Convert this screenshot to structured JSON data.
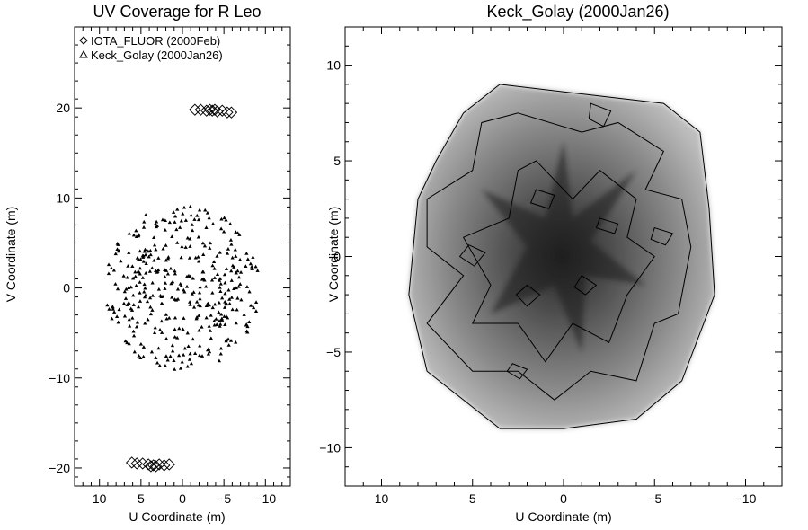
{
  "chart_data": [
    {
      "type": "scatter",
      "title": "UV Coverage for R Leo",
      "xlabel": "U Coordinate (m)",
      "ylabel": "V Coordinate (m)",
      "xlim": [
        13,
        -13
      ],
      "ylim": [
        -22,
        29
      ],
      "x_ticks": [
        10,
        5,
        0,
        -5,
        -10
      ],
      "y_ticks": [
        -20,
        -10,
        0,
        10,
        20
      ],
      "x_tick_labels": [
        "10",
        "5",
        "0",
        "−5",
        "−10"
      ],
      "y_tick_labels": [
        "−20",
        "−10",
        "0",
        "10",
        "20"
      ],
      "grid": false,
      "legend": {
        "placement": "top-left",
        "entries": [
          {
            "marker": "diamond",
            "label": "IOTA_FLUOR (2000Feb)"
          },
          {
            "marker": "triangle",
            "label": "Keck_Golay (2000Jan26)"
          }
        ]
      },
      "series": [
        {
          "name": "IOTA_FLUOR (2000Feb)",
          "marker": "diamond",
          "points": [
            [
              -1.5,
              19.8
            ],
            [
              -2.2,
              19.8
            ],
            [
              -2.9,
              19.7
            ],
            [
              -3.3,
              19.8
            ],
            [
              -3.6,
              19.7
            ],
            [
              -3.9,
              19.8
            ],
            [
              -4.2,
              19.6
            ],
            [
              -4.8,
              19.7
            ],
            [
              -5.4,
              19.5
            ],
            [
              -5.9,
              19.5
            ],
            [
              6.1,
              -19.4
            ],
            [
              5.5,
              -19.5
            ],
            [
              4.8,
              -19.5
            ],
            [
              4.1,
              -19.6
            ],
            [
              3.8,
              -19.8
            ],
            [
              3.5,
              -19.7
            ],
            [
              3.2,
              -19.8
            ],
            [
              2.8,
              -19.6
            ],
            [
              2.2,
              -19.7
            ],
            [
              1.6,
              -19.6
            ]
          ]
        },
        {
          "name": "Keck_Golay (2000Jan26)",
          "marker": "triangle",
          "description_of_extent": "hexagonal cloud of points, |U| up to ~9 m, |V| up to ~9.5 m, centrally symmetric"
        }
      ]
    },
    {
      "type": "heatmap",
      "title": "Keck_Golay (2000Jan26)",
      "xlabel": "U Coordinate (m)",
      "ylabel": "V Coordinate (m)",
      "xlim": [
        12,
        -12
      ],
      "ylim": [
        -12,
        12
      ],
      "x_ticks": [
        10,
        5,
        0,
        -5,
        -10
      ],
      "y_ticks": [
        -10,
        -5,
        0,
        5,
        10
      ],
      "x_tick_labels": [
        "10",
        "5",
        "0",
        "−5",
        "−10"
      ],
      "y_tick_labels": [
        "−10",
        "−5",
        "0",
        "5",
        "10"
      ],
      "grid": false,
      "colorscale": "greyscale, darker = higher",
      "outer_boundary": [
        [
          3.5,
          9.0
        ],
        [
          -5.5,
          8.0
        ],
        [
          -7.5,
          6.5
        ],
        [
          -8.0,
          2.5
        ],
        [
          -8.3,
          -2.0
        ],
        [
          -6.5,
          -6.5
        ],
        [
          -4.0,
          -8.5
        ],
        [
          0.0,
          -9.0
        ],
        [
          3.5,
          -9.0
        ],
        [
          7.5,
          -6.0
        ],
        [
          8.5,
          -2.0
        ],
        [
          8.0,
          3.0
        ],
        [
          7.0,
          5.0
        ],
        [
          5.5,
          7.5
        ]
      ]
    }
  ]
}
